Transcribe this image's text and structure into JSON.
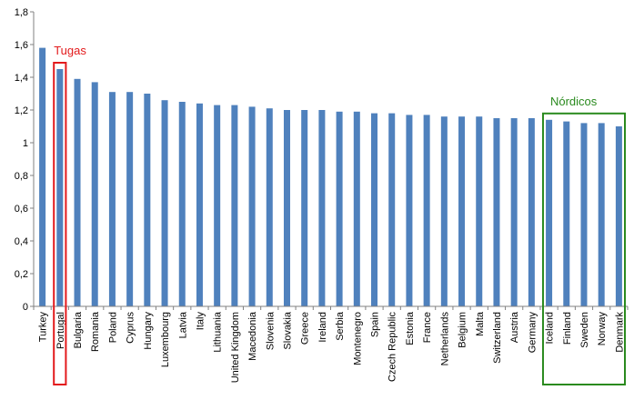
{
  "chart_data": {
    "type": "bar",
    "categories": [
      "Turkey",
      "Portugal",
      "Bulgaria",
      "Romania",
      "Poland",
      "Cyprus",
      "Hungary",
      "Luxembourg",
      "Latvia",
      "Italy",
      "Lithuania",
      "United Kingdom",
      "Macedonia",
      "Slovenia",
      "Slovakia",
      "Greece",
      "Ireland",
      "Serbia",
      "Montenegro",
      "Spain",
      "Czech Republic",
      "Estonia",
      "France",
      "Netherlands",
      "Belgium",
      "Malta",
      "Switzerland",
      "Austria",
      "Germany",
      "Iceland",
      "Finland",
      "Sweden",
      "Norway",
      "Denmark"
    ],
    "values": [
      1.58,
      1.45,
      1.39,
      1.37,
      1.31,
      1.31,
      1.3,
      1.26,
      1.25,
      1.24,
      1.23,
      1.23,
      1.22,
      1.21,
      1.2,
      1.2,
      1.2,
      1.19,
      1.19,
      1.18,
      1.18,
      1.17,
      1.17,
      1.16,
      1.16,
      1.16,
      1.15,
      1.15,
      1.15,
      1.14,
      1.13,
      1.12,
      1.12,
      1.1
    ],
    "ylim": [
      0,
      1.8
    ],
    "yticks": [
      "0",
      "0,2",
      "0,4",
      "0,6",
      "0,8",
      "1",
      "1,2",
      "1,4",
      "1,6",
      "1,8"
    ],
    "bar_color": "#4f81bd",
    "grid": false,
    "annotations": [
      {
        "label": "Tugas",
        "color": "#e31a1c",
        "from_index": 1,
        "to_index": 1
      },
      {
        "label": "Nórdicos",
        "color": "#2a8a1e",
        "from_index": 29,
        "to_index": 33
      }
    ]
  }
}
